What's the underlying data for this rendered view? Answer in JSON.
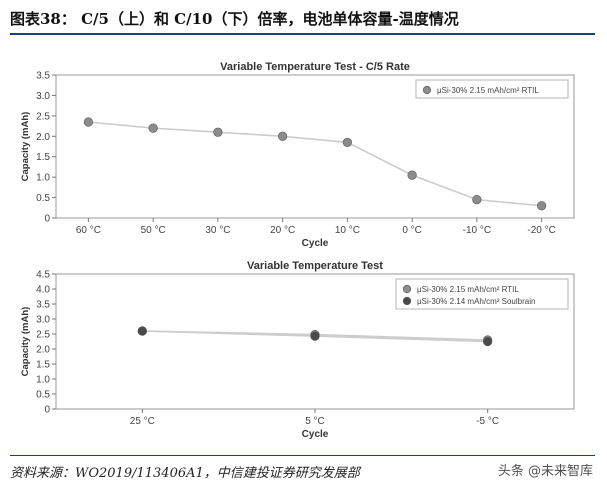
{
  "figure_title": "图表38： C/5（上）和 C/10（下）倍率，电池单体容量-温度情况",
  "source": "资料来源：WO2019/113406A1，中信建投证券研究发展部",
  "watermark": "头条 @未来智库",
  "colors": {
    "rule": "#1f3f7a",
    "series1": "#8c8c8c",
    "series2": "#4a4a4a",
    "line": "#cccccc"
  },
  "chart_data": [
    {
      "type": "line",
      "title": "Variable Temperature Test - C/5 Rate",
      "xlabel": "Cycle",
      "ylabel": "Capacity (mAh)",
      "categories": [
        "60 °C",
        "50 °C",
        "30 °C",
        "20 °C",
        "10 °C",
        "0 °C",
        "-10 °C",
        "-20 °C"
      ],
      "ylim": [
        0,
        3.5
      ],
      "yticks": [
        "0",
        "0.5",
        "1.0",
        "1.5",
        "2.0",
        "2.5",
        "3.0",
        "3.5"
      ],
      "grid": false,
      "legend_position": "top-right",
      "series": [
        {
          "name": "μSi-30% 2.15 mAh/cm² RTIL",
          "values": [
            2.35,
            2.2,
            2.1,
            2.0,
            1.85,
            1.05,
            0.45,
            0.3
          ]
        }
      ]
    },
    {
      "type": "line",
      "title": "Variable Temperature Test",
      "xlabel": "Cycle",
      "ylabel": "Capacity (mAh)",
      "categories": [
        "25 °C",
        "5 °C",
        "-5 °C"
      ],
      "ylim": [
        0,
        4.5
      ],
      "yticks": [
        "0",
        "0.5",
        "1.0",
        "1.5",
        "2.0",
        "2.5",
        "3.0",
        "3.5",
        "4.0",
        "4.5"
      ],
      "grid": false,
      "legend_position": "top-right",
      "series": [
        {
          "name": "μSi-30% 2.15 mAh/cm² RTIL",
          "values": [
            2.6,
            2.48,
            2.3
          ]
        },
        {
          "name": "μSi-30% 2.14 mAh/cm² Soulbrain",
          "values": [
            2.6,
            2.43,
            2.25
          ]
        }
      ]
    }
  ]
}
